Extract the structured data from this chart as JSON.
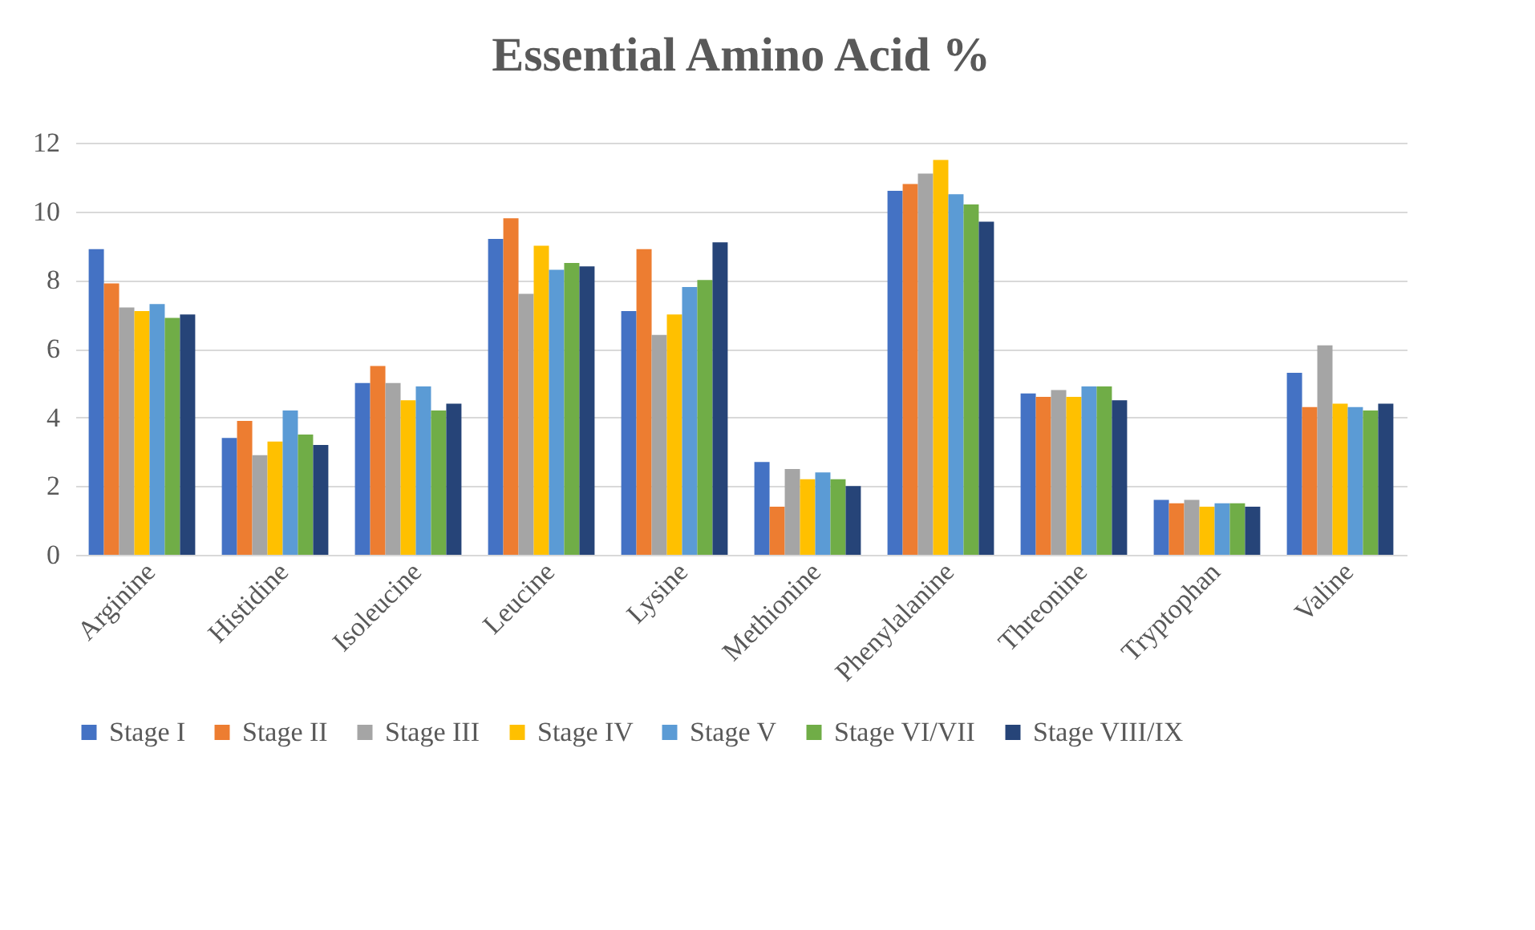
{
  "chart_data": {
    "type": "bar",
    "title": "Essential Amino Acid %",
    "categories": [
      "Arginine",
      "Histidine",
      "Isoleucine",
      "Leucine",
      "Lysine",
      "Methionine",
      "Phenylalanine",
      "Threonine",
      "Tryptophan",
      "Valine"
    ],
    "series": [
      {
        "name": "Stage I",
        "color": "#4472c4",
        "values": [
          8.9,
          3.4,
          5.0,
          9.2,
          7.1,
          2.7,
          10.6,
          4.7,
          1.6,
          5.3
        ]
      },
      {
        "name": "Stage II",
        "color": "#ed7d31",
        "values": [
          7.9,
          3.9,
          5.5,
          9.8,
          8.9,
          1.4,
          10.8,
          4.6,
          1.5,
          4.3
        ]
      },
      {
        "name": "Stage III",
        "color": "#a5a5a5",
        "values": [
          7.2,
          2.9,
          5.0,
          7.6,
          6.4,
          2.5,
          11.1,
          4.8,
          1.6,
          6.1
        ]
      },
      {
        "name": "Stage IV",
        "color": "#ffc000",
        "values": [
          7.1,
          3.3,
          4.5,
          9.0,
          7.0,
          2.2,
          11.5,
          4.6,
          1.4,
          4.4
        ]
      },
      {
        "name": "Stage V",
        "color": "#5b9bd5",
        "values": [
          7.3,
          4.2,
          4.9,
          8.3,
          7.8,
          2.4,
          10.5,
          4.9,
          1.5,
          4.3
        ]
      },
      {
        "name": "Stage VI/VII",
        "color": "#70ad47",
        "values": [
          6.9,
          3.5,
          4.2,
          8.5,
          8.0,
          2.2,
          10.2,
          4.9,
          1.5,
          4.2
        ]
      },
      {
        "name": "Stage VIII/IX",
        "color": "#264478",
        "values": [
          7.0,
          3.2,
          4.4,
          8.4,
          9.1,
          2.0,
          9.7,
          4.5,
          1.4,
          4.4
        ]
      }
    ],
    "ylim": [
      0,
      12
    ],
    "yticks": [
      0,
      2,
      4,
      6,
      8,
      10,
      12
    ],
    "grid": "y",
    "legend": "bottom"
  }
}
